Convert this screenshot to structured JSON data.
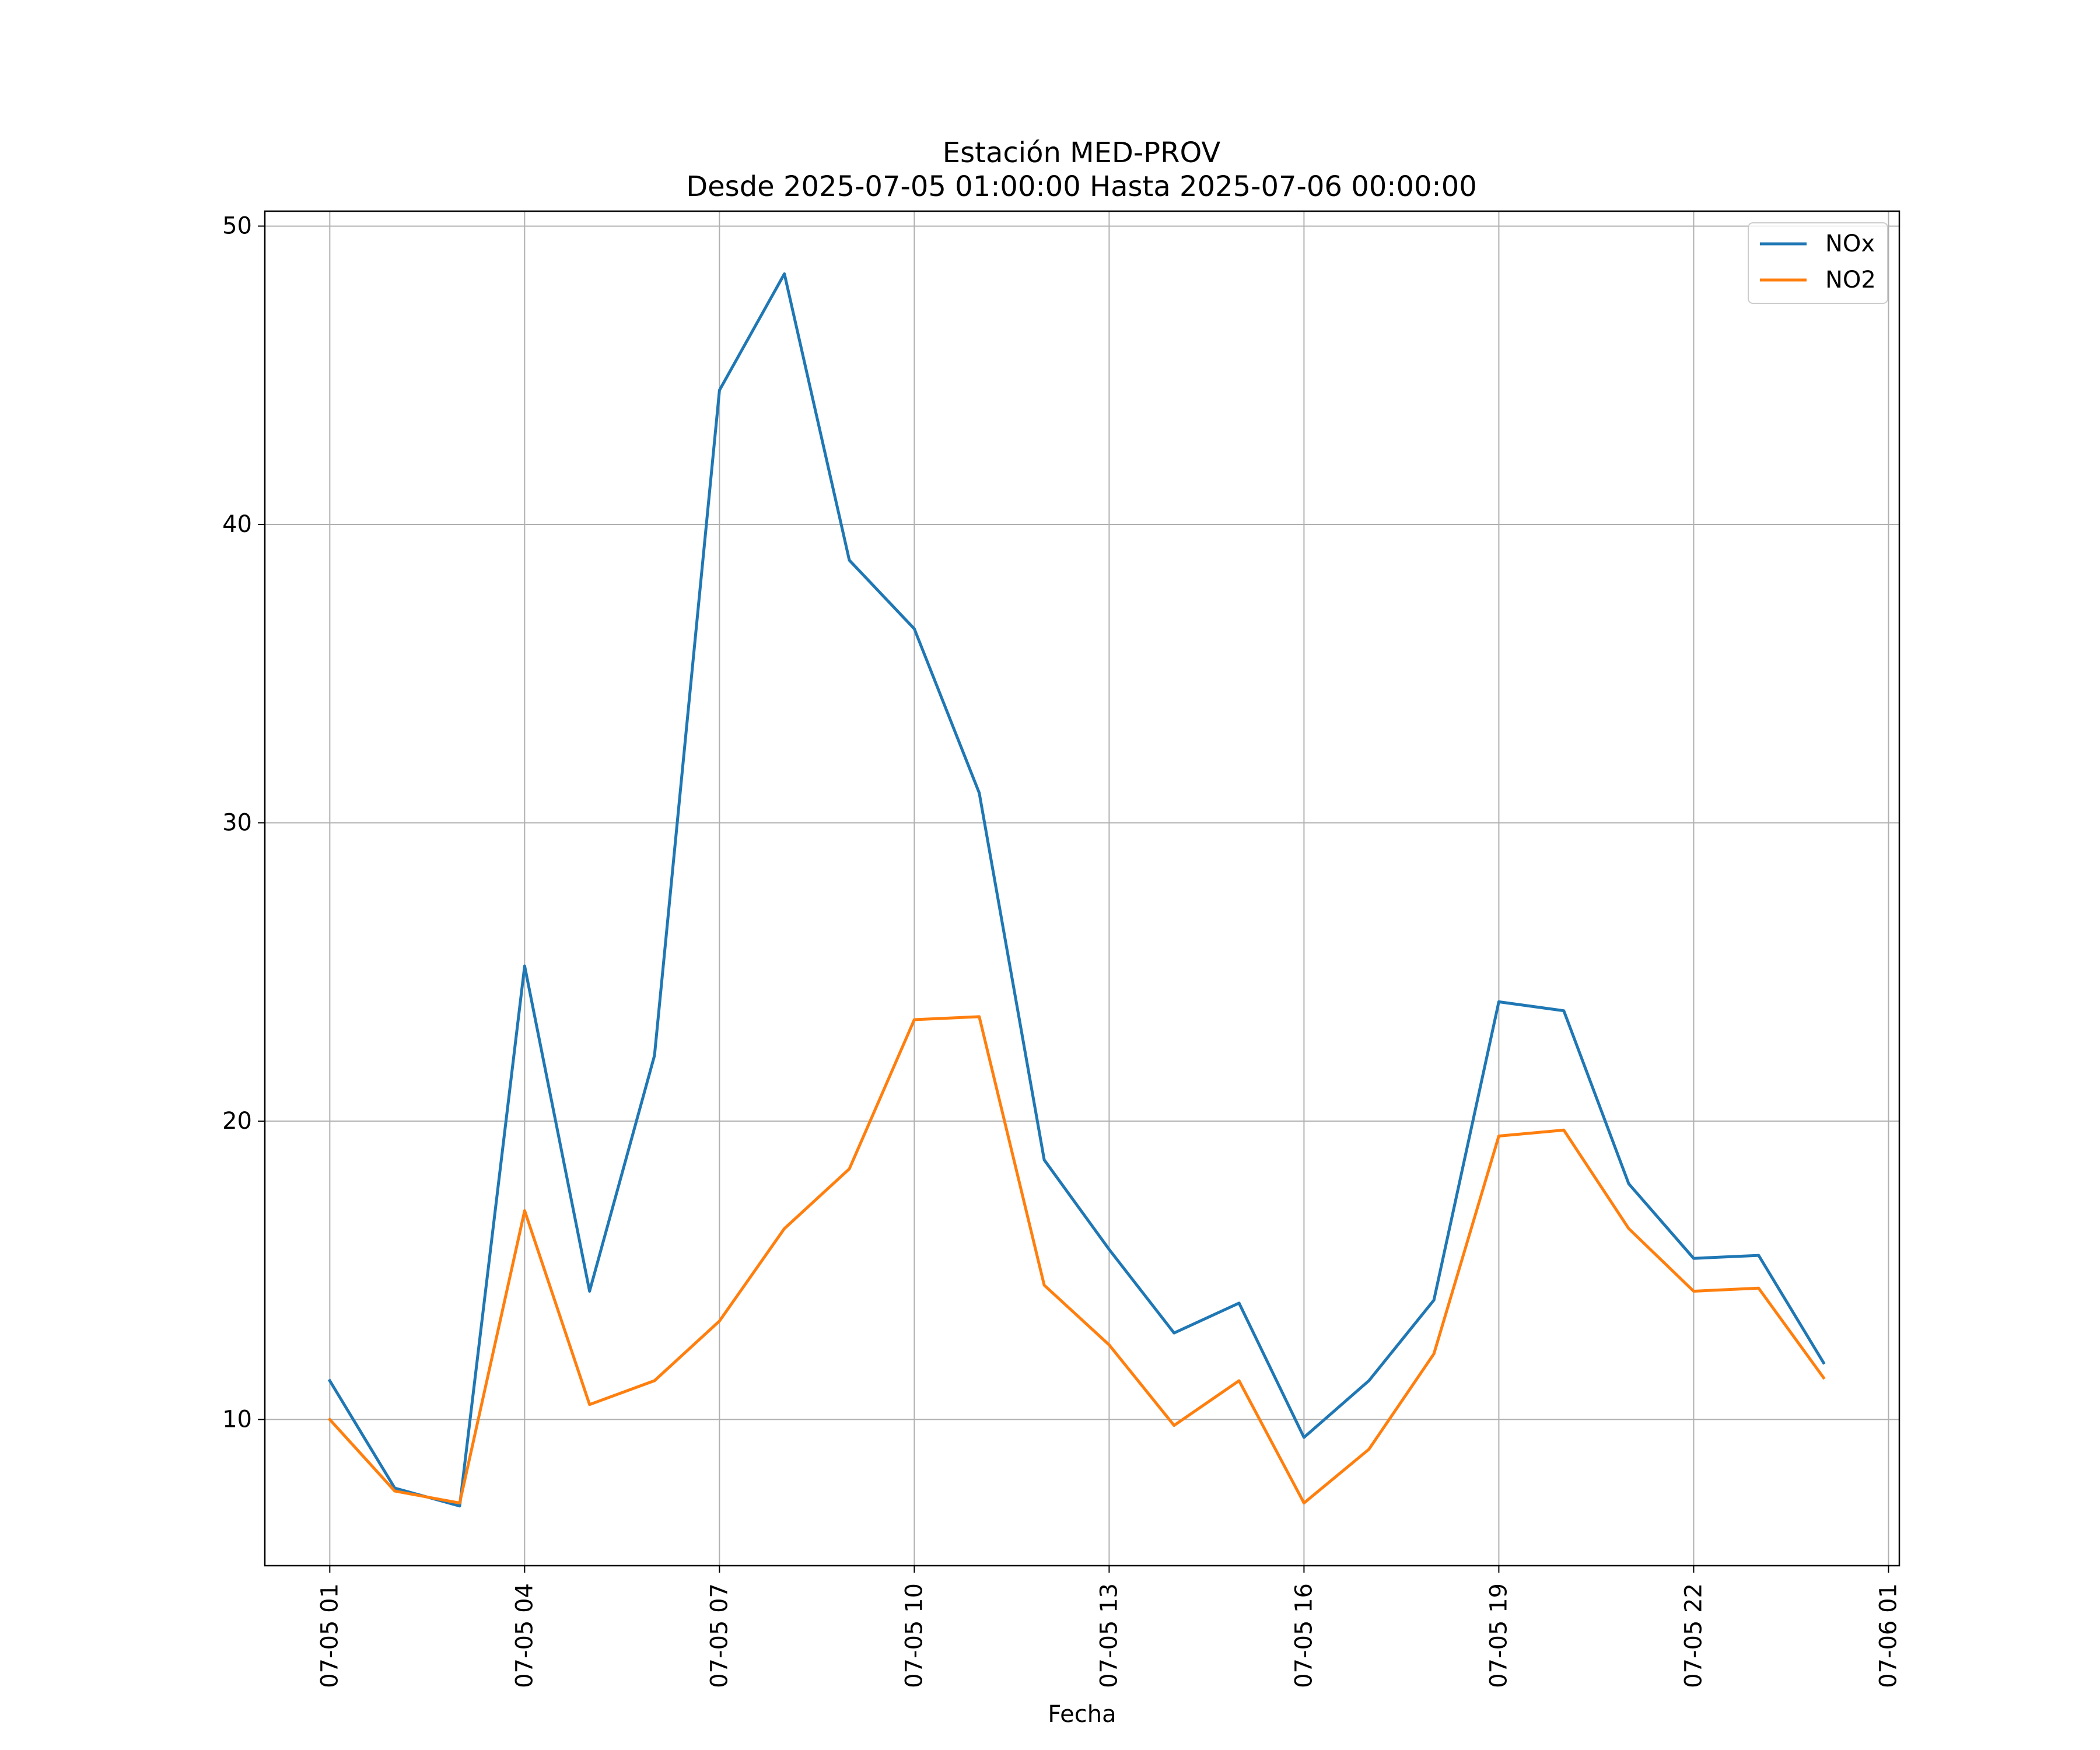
{
  "chart_data": {
    "type": "line",
    "title": "Estación MED-PROV",
    "subtitle": "Desde 2025-07-05 01:00:00 Hasta 2025-07-06 00:00:00",
    "xlabel": "Fecha",
    "ylabel": "",
    "x": [
      "2025-07-05 01:00",
      "2025-07-05 02:00",
      "2025-07-05 03:00",
      "2025-07-05 04:00",
      "2025-07-05 05:00",
      "2025-07-05 06:00",
      "2025-07-05 07:00",
      "2025-07-05 08:00",
      "2025-07-05 09:00",
      "2025-07-05 10:00",
      "2025-07-05 11:00",
      "2025-07-05 12:00",
      "2025-07-05 13:00",
      "2025-07-05 14:00",
      "2025-07-05 15:00",
      "2025-07-05 16:00",
      "2025-07-05 17:00",
      "2025-07-05 18:00",
      "2025-07-05 19:00",
      "2025-07-05 20:00",
      "2025-07-05 21:00",
      "2025-07-05 22:00",
      "2025-07-05 23:00",
      "2025-07-06 00:00"
    ],
    "xlim": [
      "2025-07-05 00:00",
      "2025-07-06 01:10"
    ],
    "ylim": [
      5.1,
      50.5
    ],
    "x_ticks": [
      "07-05 01",
      "07-05 04",
      "07-05 07",
      "07-05 10",
      "07-05 13",
      "07-05 16",
      "07-05 19",
      "07-05 22",
      "07-06 01"
    ],
    "x_tick_values": [
      "2025-07-05 01:00",
      "2025-07-05 04:00",
      "2025-07-05 07:00",
      "2025-07-05 10:00",
      "2025-07-05 13:00",
      "2025-07-05 16:00",
      "2025-07-05 19:00",
      "2025-07-05 22:00",
      "2025-07-06 01:00"
    ],
    "y_ticks": [
      10,
      20,
      30,
      40,
      50
    ],
    "grid": true,
    "legend_position": "top-right",
    "series": [
      {
        "name": "NOx",
        "color": "#1f77b4",
        "values": [
          11.3,
          7.7,
          7.1,
          25.2,
          14.3,
          22.2,
          44.5,
          48.4,
          38.8,
          36.5,
          31.0,
          18.7,
          15.7,
          12.9,
          13.9,
          9.4,
          11.3,
          14.0,
          24.0,
          23.7,
          17.9,
          15.4,
          15.5,
          11.9
        ]
      },
      {
        "name": "NO2",
        "color": "#ff7f0e",
        "values": [
          10.0,
          7.6,
          7.2,
          17.0,
          10.5,
          11.3,
          13.3,
          16.4,
          18.4,
          23.4,
          23.5,
          14.5,
          12.5,
          9.8,
          11.3,
          7.2,
          9.0,
          12.2,
          19.5,
          19.7,
          16.4,
          14.3,
          14.4,
          11.4
        ]
      }
    ]
  }
}
